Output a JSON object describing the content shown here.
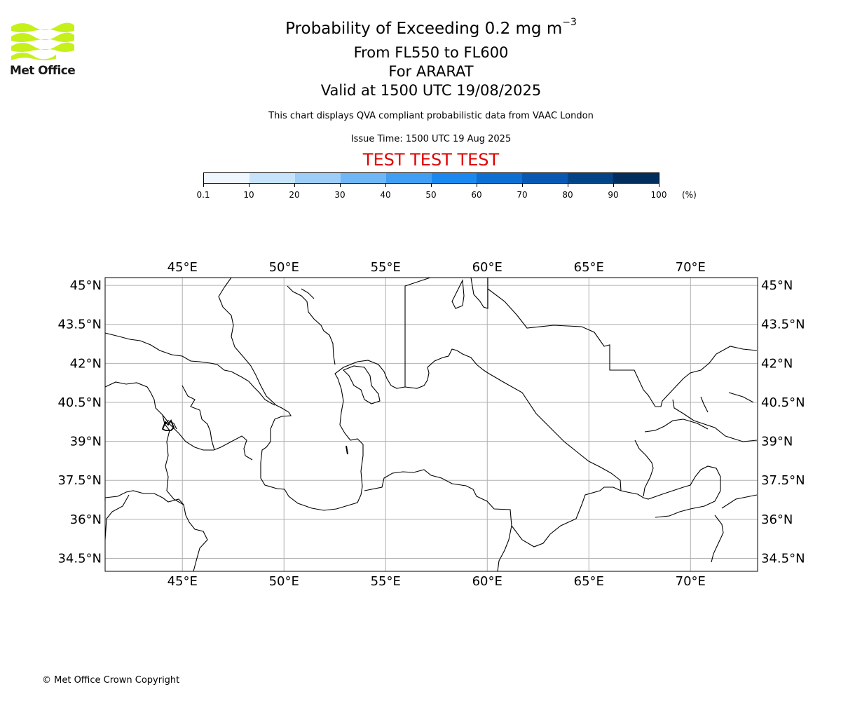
{
  "logo": {
    "text": "Met Office",
    "color": "#c6f01a"
  },
  "title": {
    "line1_prefix": "Probability of Exceeding 0.2 mg m",
    "line1_exponent": "−3",
    "line2": "From FL550 to FL600",
    "line3": "For ARARAT",
    "line4": "Valid at 1500 UTC 19/08/2025"
  },
  "disclaimer": "This chart displays QVA compliant probabilistic data from VAAC London",
  "issue_time": "Issue Time: 1500 UTC 19 Aug 2025",
  "test_banner": "TEST TEST TEST",
  "colorbar": {
    "colors": [
      "#eef6ff",
      "#c6e3fb",
      "#9dcdf9",
      "#6fb6f6",
      "#419ff3",
      "#1a88ee",
      "#0d6fd2",
      "#0858b2",
      "#044486",
      "#022d5c"
    ],
    "ticks": [
      "0.1",
      "10",
      "20",
      "30",
      "40",
      "50",
      "60",
      "70",
      "80",
      "90",
      "100"
    ],
    "unit": "(%)"
  },
  "map": {
    "lon_range": [
      41.2,
      73.3
    ],
    "lat_range": [
      34.0,
      45.3
    ],
    "lon_labels": [
      "45°E",
      "50°E",
      "55°E",
      "60°E",
      "65°E",
      "70°E"
    ],
    "lon_values": [
      45,
      50,
      55,
      60,
      65,
      70
    ],
    "lat_labels": [
      "45°N",
      "43.5°N",
      "42°N",
      "40.5°N",
      "39°N",
      "37.5°N",
      "36°N",
      "34.5°N"
    ],
    "lat_values": [
      45,
      43.5,
      42,
      40.5,
      39,
      37.5,
      36,
      34.5
    ]
  },
  "copyright": "© Met Office Crown Copyright"
}
